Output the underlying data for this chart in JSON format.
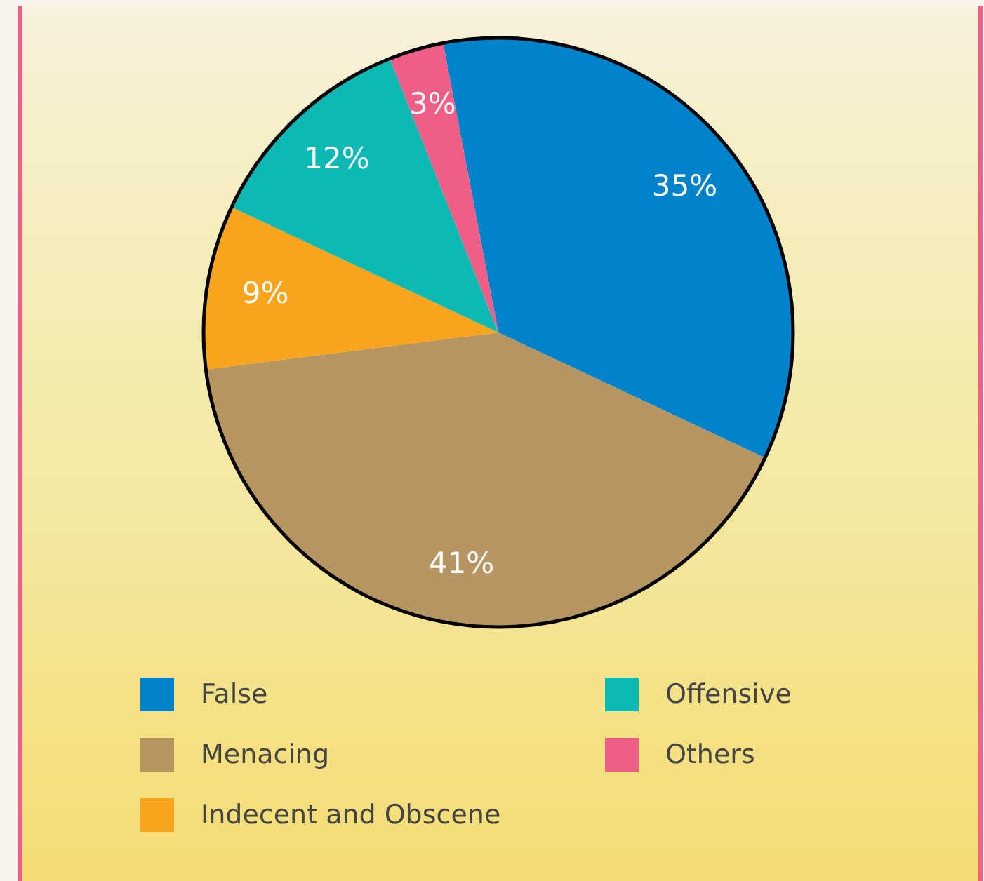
{
  "chart_data": {
    "type": "pie",
    "categories": [
      "False",
      "Menacing",
      "Indecent and Obscene",
      "Offensive",
      "Others"
    ],
    "values": [
      35,
      41,
      9,
      12,
      3
    ],
    "colors": [
      "#0083ca",
      "#b59562",
      "#f8a51d",
      "#0db9b5",
      "#f05d86"
    ],
    "value_labels": [
      "35%",
      "41%",
      "9%",
      "12%",
      "3%"
    ],
    "legend": "bottom"
  }
}
